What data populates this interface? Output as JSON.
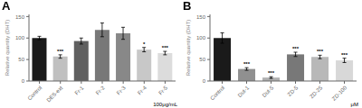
{
  "chart_data": [
    {
      "type": "bar",
      "title": "A",
      "categories": [
        "Control",
        "DES-ext",
        "Fr-1",
        "Fr-2",
        "Fr-3",
        "Fr-4",
        "Fr-5"
      ],
      "values": [
        100,
        57,
        93,
        119,
        111,
        73,
        65
      ],
      "errors": [
        4,
        4,
        7,
        16,
        14,
        5,
        4
      ],
      "colors": [
        "#1a1a1a",
        "#c0c0c0",
        "#606060",
        "#787878",
        "#888888",
        "#c8c8c8",
        "#dcdcdc"
      ],
      "annotations": [
        {
          "x": "DES-ext",
          "text": "***"
        },
        {
          "x": "Fr-4",
          "text": "*"
        },
        {
          "x": "Fr-5",
          "text": "***"
        }
      ],
      "xlabel": "100μg/mL",
      "ylabel": "Relative quantity (DHT)",
      "ylim": [
        0,
        155
      ],
      "yticks": [
        0,
        50,
        100,
        150
      ]
    },
    {
      "type": "bar",
      "title": "B",
      "categories": [
        "Control",
        "Dut-1",
        "Dut-5",
        "ZD-5",
        "ZD-25",
        "ZD-100"
      ],
      "values": [
        100,
        28,
        8,
        62,
        56,
        48
      ],
      "errors": [
        12,
        3,
        2,
        5,
        4,
        5
      ],
      "colors": [
        "#1a1a1a",
        "#909090",
        "#b0b0b0",
        "#787878",
        "#b8b8b8",
        "#d8d8d8"
      ],
      "annotations": [
        {
          "x": "Dut-1",
          "text": "***"
        },
        {
          "x": "Dut-5",
          "text": "***"
        },
        {
          "x": "ZD-5",
          "text": "***"
        },
        {
          "x": "ZD-25",
          "text": "***"
        },
        {
          "x": "ZD-100",
          "text": "***"
        }
      ],
      "xlabel": "μM",
      "ylabel": "Relative quantity (DHT)",
      "ylim": [
        0,
        155
      ],
      "yticks": [
        0,
        50,
        100,
        150
      ]
    }
  ]
}
